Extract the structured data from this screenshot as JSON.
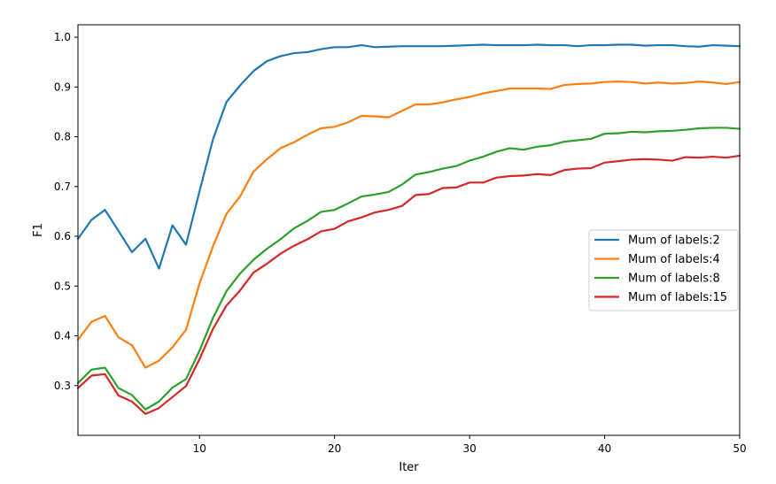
{
  "chart_data": {
    "type": "line",
    "xlabel": "Iter",
    "ylabel": "F1",
    "xlim": [
      1,
      50
    ],
    "ylim": [
      0.2,
      1.025
    ],
    "xticks": [
      10,
      20,
      30,
      40,
      50
    ],
    "yticks": [
      0.3,
      0.4,
      0.5,
      0.6,
      0.7,
      0.8,
      0.9,
      1.0
    ],
    "ytick_labels": [
      "0.3",
      "0.4",
      "0.5",
      "0.6",
      "0.7",
      "0.8",
      "0.9",
      "1.0"
    ],
    "grid": false,
    "legend_position": "center-right",
    "x": [
      1,
      2,
      3,
      4,
      5,
      6,
      7,
      8,
      9,
      10,
      11,
      12,
      13,
      14,
      15,
      16,
      17,
      18,
      19,
      20,
      21,
      22,
      23,
      24,
      25,
      26,
      27,
      28,
      29,
      30,
      31,
      32,
      33,
      34,
      35,
      36,
      37,
      38,
      39,
      40,
      41,
      42,
      43,
      44,
      45,
      46,
      47,
      48,
      49,
      50
    ],
    "series": [
      {
        "name": "Mum of labels:2",
        "color": "#1f77b4",
        "values": [
          0.595,
          0.633,
          0.653,
          0.611,
          0.568,
          0.595,
          0.535,
          0.622,
          0.583,
          0.69,
          0.795,
          0.87,
          0.903,
          0.932,
          0.952,
          0.962,
          0.968,
          0.97,
          0.976,
          0.98,
          0.98,
          0.984,
          0.98,
          0.981,
          0.982,
          0.982,
          0.982,
          0.982,
          0.983,
          0.984,
          0.985,
          0.984,
          0.984,
          0.984,
          0.985,
          0.984,
          0.984,
          0.982,
          0.984,
          0.984,
          0.985,
          0.985,
          0.983,
          0.984,
          0.984,
          0.982,
          0.981,
          0.984,
          0.983,
          0.982
        ]
      },
      {
        "name": "Mum of labels:4",
        "color": "#ff7f0e",
        "values": [
          0.392,
          0.428,
          0.44,
          0.397,
          0.381,
          0.336,
          0.35,
          0.377,
          0.412,
          0.505,
          0.58,
          0.645,
          0.68,
          0.73,
          0.755,
          0.777,
          0.789,
          0.804,
          0.817,
          0.82,
          0.829,
          0.842,
          0.841,
          0.839,
          0.852,
          0.865,
          0.865,
          0.869,
          0.875,
          0.88,
          0.887,
          0.892,
          0.897,
          0.897,
          0.897,
          0.896,
          0.904,
          0.906,
          0.907,
          0.91,
          0.911,
          0.91,
          0.907,
          0.909,
          0.907,
          0.908,
          0.911,
          0.909,
          0.906,
          0.91
        ]
      },
      {
        "name": "Mum of labels:8",
        "color": "#2ca02c",
        "values": [
          0.305,
          0.332,
          0.336,
          0.295,
          0.281,
          0.252,
          0.268,
          0.296,
          0.313,
          0.37,
          0.436,
          0.49,
          0.525,
          0.553,
          0.575,
          0.594,
          0.616,
          0.631,
          0.649,
          0.653,
          0.666,
          0.68,
          0.684,
          0.689,
          0.704,
          0.724,
          0.729,
          0.736,
          0.741,
          0.752,
          0.76,
          0.77,
          0.777,
          0.774,
          0.78,
          0.783,
          0.79,
          0.793,
          0.796,
          0.806,
          0.807,
          0.81,
          0.809,
          0.811,
          0.812,
          0.814,
          0.817,
          0.818,
          0.818,
          0.816
        ]
      },
      {
        "name": "Mum of labels:15",
        "color": "#d62728",
        "values": [
          0.295,
          0.32,
          0.323,
          0.28,
          0.268,
          0.243,
          0.255,
          0.277,
          0.299,
          0.353,
          0.414,
          0.461,
          0.491,
          0.527,
          0.545,
          0.565,
          0.581,
          0.594,
          0.61,
          0.615,
          0.63,
          0.638,
          0.648,
          0.653,
          0.661,
          0.683,
          0.685,
          0.697,
          0.698,
          0.708,
          0.708,
          0.718,
          0.721,
          0.722,
          0.725,
          0.723,
          0.733,
          0.736,
          0.737,
          0.748,
          0.751,
          0.754,
          0.755,
          0.754,
          0.752,
          0.759,
          0.758,
          0.76,
          0.758,
          0.762
        ]
      }
    ]
  }
}
